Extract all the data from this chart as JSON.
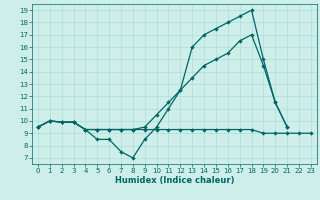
{
  "xlabel": "Humidex (Indice chaleur)",
  "background_color": "#cdeee9",
  "grid_color": "#b0ddd8",
  "line_color": "#006666",
  "xlim": [
    -0.5,
    23.5
  ],
  "ylim": [
    6.5,
    19.5
  ],
  "xticks": [
    0,
    1,
    2,
    3,
    4,
    5,
    6,
    7,
    8,
    9,
    10,
    11,
    12,
    13,
    14,
    15,
    16,
    17,
    18,
    19,
    20,
    21,
    22,
    23
  ],
  "yticks": [
    7,
    8,
    9,
    10,
    11,
    12,
    13,
    14,
    15,
    16,
    17,
    18,
    19
  ],
  "line1_x": [
    0,
    1,
    2,
    3,
    4,
    5,
    6,
    7,
    8,
    9,
    10,
    11,
    12,
    13,
    14,
    15,
    16,
    17,
    18,
    19,
    20,
    21
  ],
  "line1_y": [
    9.5,
    10.0,
    9.9,
    9.9,
    9.3,
    8.5,
    8.5,
    7.5,
    7.0,
    8.5,
    9.5,
    11.0,
    12.5,
    16.0,
    17.0,
    17.5,
    18.0,
    18.5,
    19.0,
    15.0,
    11.5,
    9.5
  ],
  "line2_x": [
    0,
    1,
    2,
    3,
    4,
    5,
    6,
    7,
    8,
    9,
    10,
    11,
    12,
    13,
    14,
    15,
    16,
    17,
    18,
    19,
    20,
    21,
    22,
    23
  ],
  "line2_y": [
    9.5,
    10.0,
    9.9,
    9.9,
    9.3,
    9.3,
    9.3,
    9.3,
    9.3,
    9.3,
    9.3,
    9.3,
    9.3,
    9.3,
    9.3,
    9.3,
    9.3,
    9.3,
    9.3,
    9.0,
    9.0,
    9.0,
    9.0,
    9.0
  ],
  "line3_x": [
    0,
    1,
    2,
    3,
    4,
    5,
    6,
    7,
    8,
    9,
    10,
    11,
    12,
    13,
    14,
    15,
    16,
    17,
    18,
    19,
    20,
    21
  ],
  "line3_y": [
    9.5,
    10.0,
    9.9,
    9.9,
    9.3,
    9.3,
    9.3,
    9.3,
    9.3,
    9.5,
    10.5,
    11.5,
    12.5,
    13.5,
    14.5,
    15.0,
    15.5,
    16.5,
    17.0,
    14.5,
    11.5,
    9.5
  ]
}
